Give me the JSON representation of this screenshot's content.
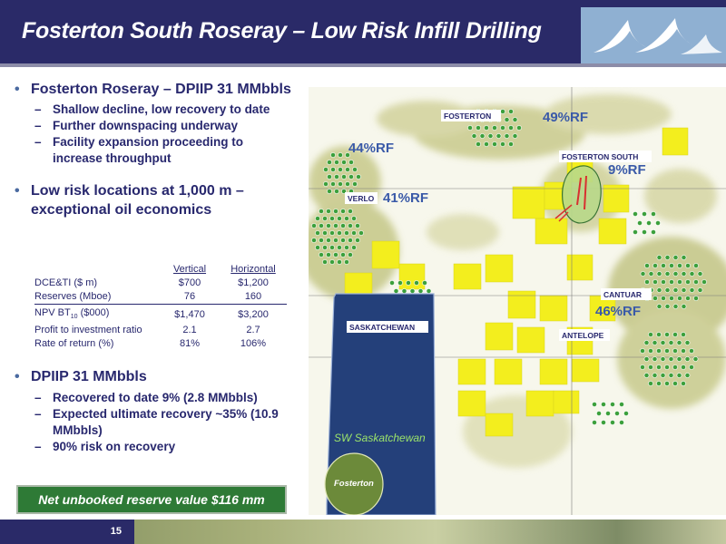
{
  "header": {
    "title": "Fosterton South Roseray – Low Risk Infill Drilling"
  },
  "bullets": [
    {
      "text": "Fosterton Roseray – DPIIP 31 MMbbls",
      "subs": [
        "Shallow decline, low recovery to date",
        "Further downspacing underway",
        "Facility expansion proceeding to increase  throughput"
      ]
    },
    {
      "text": "Low risk locations at 1,000 m  – exceptional oil economics",
      "subs": []
    },
    {
      "text": "DPIIP 31 MMbbls",
      "subs": [
        "Recovered to date 9% (2.8 MMbbls)",
        "Expected ultimate recovery ~35% (10.9 MMbbls)",
        "90% risk on recovery"
      ]
    }
  ],
  "economics": {
    "col_vertical": "Vertical",
    "col_horizontal": "Horizontal",
    "rows": [
      {
        "label": "DCE&TI ($ m)",
        "vertical": "$700",
        "horizontal": "$1,200"
      },
      {
        "label": "Reserves (Mboe)",
        "vertical": "76",
        "horizontal": "160"
      },
      {
        "label": "NPV BT",
        "label_sub": "10",
        "label_suffix": " ($000)",
        "vertical": "$1,470",
        "horizontal": "$3,200"
      },
      {
        "label": "Profit to investment ratio",
        "vertical": "2.1",
        "horizontal": "2.7"
      },
      {
        "label": "Rate of return (%)",
        "vertical": "81%",
        "horizontal": "106%"
      }
    ]
  },
  "net_box": "Net unbooked reserve value $116 mm",
  "page_number": "15",
  "map": {
    "field_labels": {
      "fosterton": "FOSTERTON",
      "fosterton_south": "FOSTERTON SOUTH",
      "verlo": "VERLO",
      "cantuar": "CANTUAR",
      "antelope": "ANTELOPE"
    },
    "rf_labels": {
      "fosterton": "49%RF",
      "fosterton_south": "9%RF",
      "northwest": "44%RF",
      "verlo": "41%RF",
      "cantuar": "46%RF"
    },
    "inset": {
      "province": "SASKATCHEWAN",
      "region": "SW Saskatchewan",
      "location": "Fosterton"
    }
  },
  "colors": {
    "header_bg": "#2a2a68",
    "text_navy": "#28286e",
    "rf_label": "#3a5aa8",
    "net_box_bg": "#2e7a36",
    "lease_yellow": "#f3ee1e",
    "inset_blue": "#24407a"
  }
}
